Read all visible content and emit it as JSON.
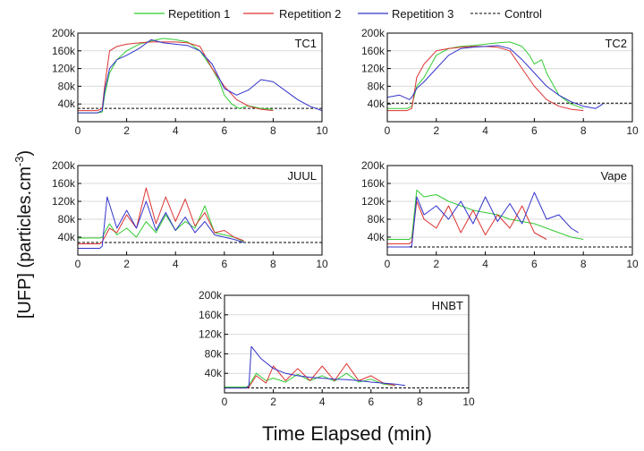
{
  "chart_data": {
    "type": "line",
    "legend": [
      {
        "name": "Repetition 1",
        "color": "#33cc33",
        "dash": "solid"
      },
      {
        "name": "Repetition 2",
        "color": "#dd3333",
        "dash": "solid"
      },
      {
        "name": "Repetition 3",
        "color": "#3333cc",
        "dash": "solid"
      },
      {
        "name": "Control",
        "color": "#000000",
        "dash": "dashed"
      }
    ],
    "xlabel": "Time Elapsed (min)",
    "ylabel": "[UFP] (particles.cm-3)",
    "ylabel_main": "[UFP] (particles.cm",
    "ylabel_sup": "-3",
    "ylabel_close": ")",
    "xlim": [
      0,
      10
    ],
    "ylim": [
      0,
      200000
    ],
    "xticks": [
      "0",
      "2",
      "4",
      "6",
      "8",
      "10"
    ],
    "yticks": [
      "40k",
      "80k",
      "120k",
      "160k",
      "200k"
    ],
    "panels": [
      {
        "title": "TC1",
        "control": 30000,
        "series": [
          {
            "name": "Repetition 1",
            "x": [
              0,
              0.8,
              1.0,
              1.1,
              1.3,
              1.6,
              2.0,
              2.5,
              3.0,
              3.5,
              4.0,
              4.5,
              5.0,
              5.5,
              5.8,
              6.0,
              6.3,
              6.6,
              7.0,
              7.5,
              8.0
            ],
            "y": [
              20000,
              20000,
              22000,
              60000,
              110000,
              140000,
              160000,
              175000,
              182000,
              188000,
              185000,
              180000,
              160000,
              120000,
              90000,
              60000,
              40000,
              30000,
              36000,
              30000,
              28000
            ]
          },
          {
            "name": "Repetition 2",
            "x": [
              0,
              0.8,
              1.0,
              1.1,
              1.3,
              1.6,
              2.0,
              2.5,
              3.0,
              3.5,
              4.0,
              4.5,
              5.0,
              5.5,
              6.0,
              6.5,
              7.0,
              7.5,
              8.0
            ],
            "y": [
              25000,
              25000,
              30000,
              80000,
              160000,
              170000,
              175000,
              178000,
              180000,
              180000,
              180000,
              178000,
              170000,
              120000,
              80000,
              50000,
              35000,
              28000,
              25000
            ]
          },
          {
            "name": "Repetition 3",
            "x": [
              0,
              0.8,
              1.0,
              1.1,
              1.3,
              1.6,
              2.0,
              2.5,
              3.0,
              3.5,
              4.0,
              4.5,
              5.0,
              5.5,
              6.0,
              6.5,
              7.0,
              7.5,
              8.0,
              8.5,
              9.0,
              9.5,
              10.0
            ],
            "y": [
              20000,
              20000,
              25000,
              70000,
              120000,
              140000,
              150000,
              165000,
              185000,
              178000,
              175000,
              172000,
              160000,
              130000,
              75000,
              60000,
              72000,
              95000,
              90000,
              70000,
              50000,
              35000,
              25000
            ]
          }
        ]
      },
      {
        "title": "TC2",
        "control": 42000,
        "series": [
          {
            "name": "Repetition 1",
            "x": [
              0,
              0.8,
              1.0,
              1.2,
              1.5,
              2.0,
              2.5,
              3.0,
              3.5,
              4.0,
              4.5,
              5.0,
              5.5,
              5.8,
              6.0,
              6.3,
              6.5,
              6.8,
              7.0,
              7.5,
              8.0
            ],
            "y": [
              30000,
              30000,
              35000,
              80000,
              100000,
              150000,
              165000,
              170000,
              172000,
              175000,
              178000,
              180000,
              170000,
              150000,
              130000,
              140000,
              110000,
              80000,
              60000,
              40000,
              30000
            ]
          },
          {
            "name": "Repetition 2",
            "x": [
              0,
              0.8,
              1.0,
              1.2,
              1.5,
              2.0,
              2.5,
              3.0,
              3.5,
              4.0,
              4.5,
              5.0,
              5.5,
              6.0,
              6.5,
              7.0,
              7.5,
              8.0
            ],
            "y": [
              25000,
              25000,
              30000,
              100000,
              130000,
              160000,
              165000,
              168000,
              170000,
              170000,
              168000,
              160000,
              120000,
              80000,
              50000,
              35000,
              28000,
              25000
            ]
          },
          {
            "name": "Repetition 3",
            "x": [
              0,
              0.5,
              0.9,
              1.0,
              1.2,
              1.5,
              2.0,
              2.5,
              3.0,
              3.5,
              4.0,
              4.5,
              5.0,
              5.5,
              6.0,
              6.5,
              7.0,
              7.5,
              8.0,
              8.5,
              8.8
            ],
            "y": [
              55000,
              60000,
              50000,
              55000,
              75000,
              90000,
              120000,
              150000,
              165000,
              168000,
              170000,
              172000,
              165000,
              140000,
              110000,
              80000,
              60000,
              45000,
              35000,
              30000,
              40000
            ]
          }
        ]
      },
      {
        "title": "JUUL",
        "control": 28000,
        "series": [
          {
            "name": "Repetition 1",
            "x": [
              0,
              0.9,
              1.0,
              1.3,
              1.6,
              2.0,
              2.4,
              2.8,
              3.2,
              3.6,
              4.0,
              4.4,
              4.8,
              5.2,
              5.6,
              6.0,
              6.4,
              6.8
            ],
            "y": [
              38000,
              38000,
              40000,
              70000,
              45000,
              60000,
              40000,
              75000,
              50000,
              90000,
              55000,
              75000,
              60000,
              110000,
              50000,
              45000,
              40000,
              30000
            ]
          },
          {
            "name": "Repetition 2",
            "x": [
              0,
              0.9,
              1.0,
              1.3,
              1.6,
              2.0,
              2.4,
              2.8,
              3.2,
              3.6,
              4.0,
              4.4,
              4.8,
              5.2,
              5.6,
              6.0,
              6.4,
              6.8
            ],
            "y": [
              25000,
              25000,
              30000,
              60000,
              50000,
              90000,
              60000,
              150000,
              70000,
              130000,
              75000,
              125000,
              65000,
              95000,
              50000,
              55000,
              40000,
              32000
            ]
          },
          {
            "name": "Repetition 3",
            "x": [
              0,
              0.9,
              1.0,
              1.2,
              1.6,
              2.0,
              2.4,
              2.8,
              3.2,
              3.6,
              4.0,
              4.4,
              4.8,
              5.2,
              5.6,
              6.0,
              6.4,
              6.8
            ],
            "y": [
              15000,
              15000,
              20000,
              130000,
              60000,
              100000,
              60000,
              120000,
              55000,
              95000,
              55000,
              85000,
              50000,
              75000,
              45000,
              40000,
              35000,
              28000
            ]
          }
        ]
      },
      {
        "title": "Vape",
        "control": 18000,
        "series": [
          {
            "name": "Repetition 1",
            "x": [
              0,
              0.9,
              1.0,
              1.2,
              1.5,
              2.0,
              2.5,
              3.0,
              3.5,
              4.0,
              4.5,
              5.0,
              5.5,
              6.0,
              6.5,
              7.0,
              7.5,
              8.0
            ],
            "y": [
              35000,
              35000,
              40000,
              145000,
              130000,
              135000,
              120000,
              110000,
              100000,
              95000,
              90000,
              80000,
              75000,
              70000,
              60000,
              50000,
              40000,
              35000
            ]
          },
          {
            "name": "Repetition 2",
            "x": [
              0,
              0.9,
              1.0,
              1.2,
              1.5,
              2.0,
              2.5,
              3.0,
              3.5,
              4.0,
              4.5,
              5.0,
              5.5,
              6.0,
              6.5
            ],
            "y": [
              25000,
              25000,
              30000,
              120000,
              80000,
              60000,
              110000,
              50000,
              100000,
              45000,
              90000,
              60000,
              110000,
              50000,
              35000
            ]
          },
          {
            "name": "Repetition 3",
            "x": [
              0,
              0.9,
              1.0,
              1.2,
              1.5,
              2.0,
              2.5,
              3.0,
              3.5,
              4.0,
              4.5,
              5.0,
              5.5,
              6.0,
              6.5,
              7.0,
              7.5,
              7.8
            ],
            "y": [
              18000,
              18000,
              20000,
              130000,
              90000,
              110000,
              80000,
              120000,
              70000,
              130000,
              75000,
              115000,
              70000,
              140000,
              80000,
              90000,
              60000,
              50000
            ]
          }
        ]
      },
      {
        "title": "HNBT",
        "control": 10000,
        "series": [
          {
            "name": "Repetition 1",
            "x": [
              0,
              0.9,
              1.0,
              1.3,
              1.7,
              2.0,
              2.5,
              3.0,
              3.5,
              4.0,
              4.5,
              5.0,
              5.5,
              6.0,
              6.5,
              7.0
            ],
            "y": [
              12000,
              12000,
              15000,
              40000,
              25000,
              30000,
              22000,
              38000,
              25000,
              35000,
              24000,
              40000,
              22000,
              28000,
              18000,
              15000
            ]
          },
          {
            "name": "Repetition 2",
            "x": [
              0,
              0.9,
              1.0,
              1.3,
              1.7,
              2.0,
              2.5,
              3.0,
              3.5,
              4.0,
              4.5,
              5.0,
              5.5,
              6.0,
              6.5,
              7.0
            ],
            "y": [
              10000,
              10000,
              12000,
              35000,
              20000,
              55000,
              25000,
              50000,
              25000,
              55000,
              25000,
              60000,
              25000,
              35000,
              20000,
              15000
            ]
          },
          {
            "name": "Repetition 3",
            "x": [
              0,
              0.9,
              1.0,
              1.1,
              1.5,
              2.0,
              2.5,
              3.0,
              3.5,
              4.0,
              4.5,
              5.0,
              5.5,
              6.0,
              6.5,
              7.0,
              7.4
            ],
            "y": [
              10000,
              10000,
              15000,
              95000,
              70000,
              50000,
              40000,
              35000,
              32000,
              30000,
              28000,
              27000,
              25000,
              22000,
              20000,
              18000,
              15000
            ]
          }
        ]
      }
    ]
  }
}
